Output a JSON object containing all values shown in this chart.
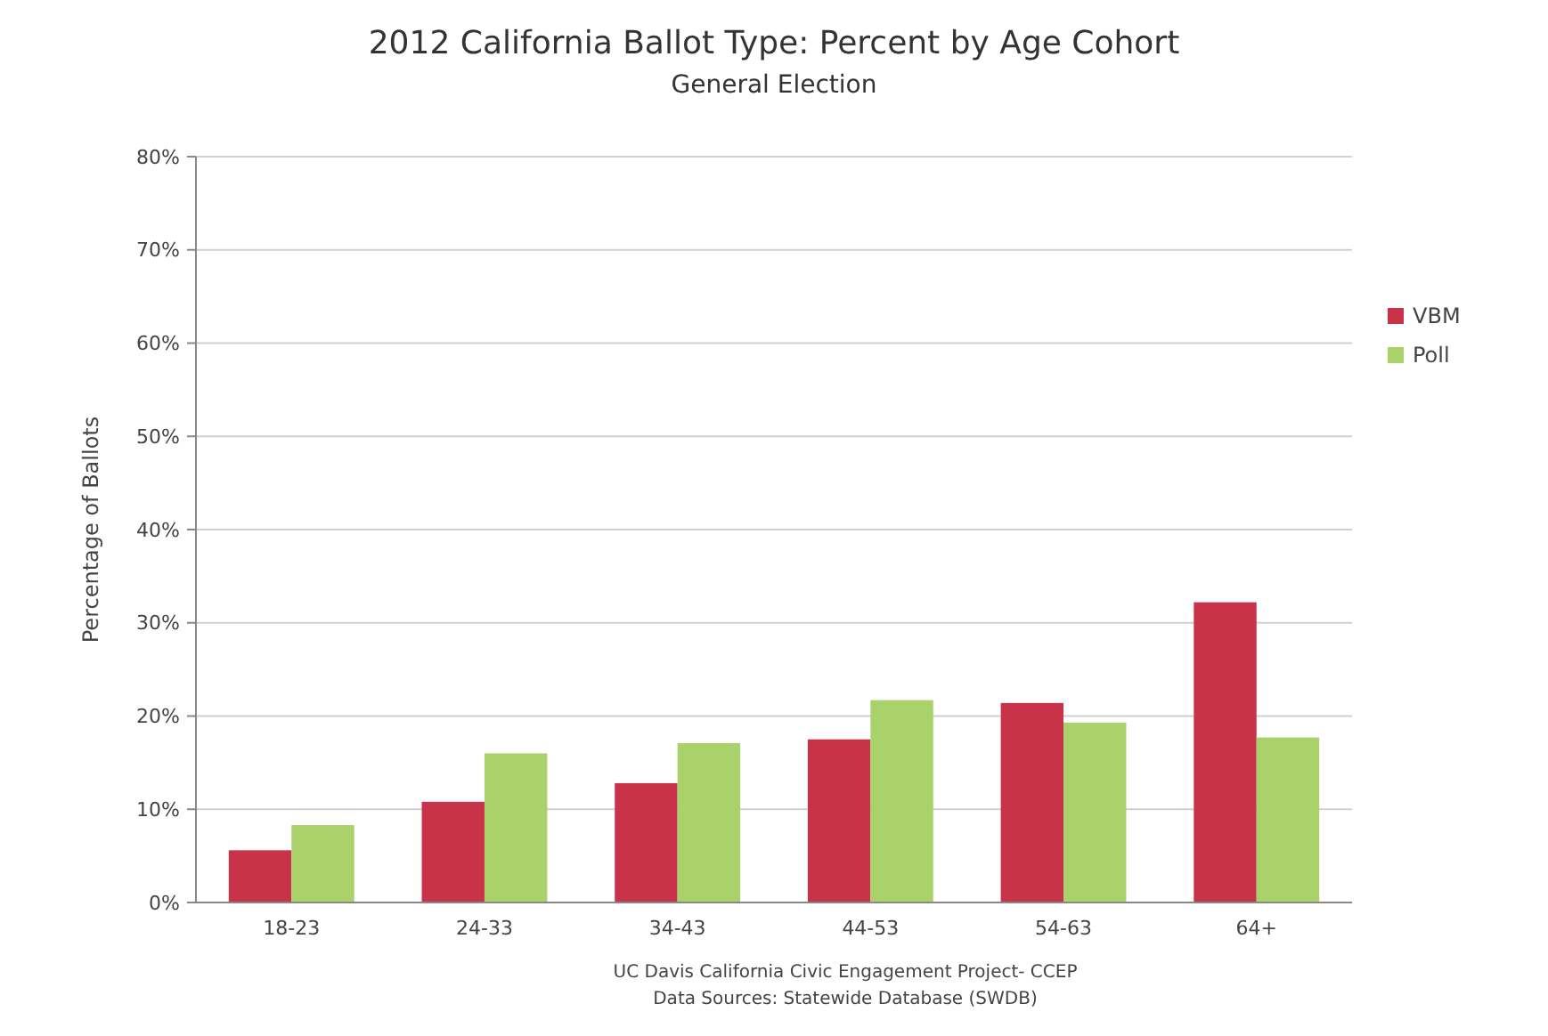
{
  "chart_data": {
    "type": "bar",
    "title": "2012 California Ballot Type: Percent by Age Cohort",
    "subtitle": "General Election",
    "ylabel": "Percentage of Ballots",
    "categories": [
      "18-23",
      "24-33",
      "34-43",
      "44-53",
      "54-63",
      "64+"
    ],
    "series": [
      {
        "name": "VBM",
        "color": "#c8334a",
        "values": [
          5.6,
          10.8,
          12.8,
          17.5,
          21.4,
          32.2
        ]
      },
      {
        "name": "Poll",
        "color": "#a9d36a",
        "values": [
          8.3,
          16.0,
          17.1,
          21.7,
          19.3,
          17.7
        ]
      }
    ],
    "ylim": [
      0,
      80
    ],
    "yticks": [
      {
        "value": 0,
        "label": "0%"
      },
      {
        "value": 10,
        "label": "10%"
      },
      {
        "value": 20,
        "label": "20%"
      },
      {
        "value": 30,
        "label": "30%"
      },
      {
        "value": 40,
        "label": "40%"
      },
      {
        "value": 50,
        "label": "50%"
      },
      {
        "value": 60,
        "label": "60%"
      },
      {
        "value": 70,
        "label": "70%"
      },
      {
        "value": 80,
        "label": "80%"
      }
    ],
    "grid": "y",
    "legend": "right",
    "annotations": [
      "UC Davis California Civic Engagement Project- CCEP",
      "Data Sources: Statewide Database (SWDB)"
    ]
  }
}
